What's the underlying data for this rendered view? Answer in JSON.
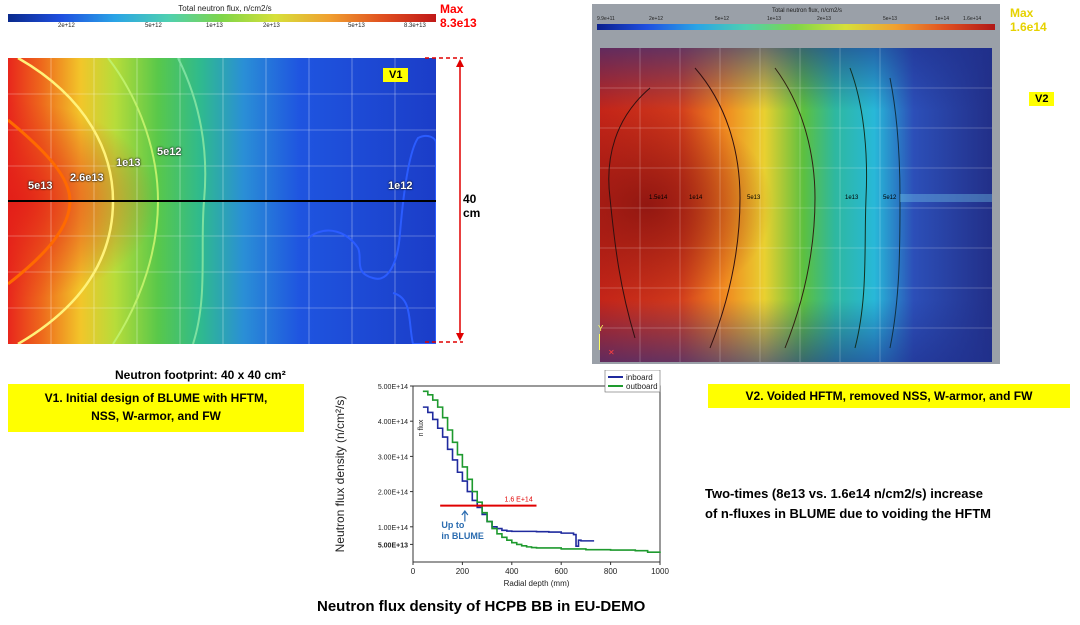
{
  "v1": {
    "colorbar_title": "Total neutron flux, n/cm2/s",
    "colorbar_ticks": [
      "2e+12",
      "5e+12",
      "1e+13",
      "2e+13",
      "5e+13",
      "8.3e+13"
    ],
    "max_label": "Max",
    "max_value": "8.3e13",
    "tag": "V1",
    "contour_labels": [
      "5e13",
      "2.6e13",
      "1e13",
      "5e12",
      "1e12"
    ],
    "height_label": "40 cm",
    "footprint": "Neutron footprint: 40 x 40 cm²",
    "caption_line1": "V1. Initial design of BLUME with HFTM,",
    "caption_line2": "NSS, W-armor, and FW",
    "colors": {
      "max": "#ff0000",
      "dash": "#e00000"
    }
  },
  "v2": {
    "colorbar_title": "Total neutron flux, n/cm2/s",
    "colorbar_ticks": [
      "9.9e+11",
      "2e+12",
      "5e+12",
      "1e+13",
      "2e+13",
      "5e+13",
      "1e+14",
      "1.6e+14"
    ],
    "max_label": "Max",
    "max_value": "1.6e14",
    "tag": "V2",
    "contour_labels": [
      "1.5e14",
      "1e14",
      "5e13",
      "1e13",
      "5e12"
    ],
    "caption": "V2. Voided HFTM, removed NSS, W-armor, and FW",
    "colors": {
      "max": "#ffff00"
    }
  },
  "summary_line1": "Two-times (8e13 vs. 1.6e14 n/cm2/s) increase",
  "summary_line2": "of n-fluxes in BLUME due to voiding the HFTM",
  "bottom_title": "Neutron flux density of HCPB BB in EU-DEMO",
  "chart_data": {
    "type": "line",
    "xlabel": "Radial depth (mm)",
    "ylabel": "Neutron flux density (n/cm²/s)",
    "inner_ylabel": "n flux",
    "xlim": [
      0,
      1000
    ],
    "ylim": [
      0,
      500000000000000.0
    ],
    "xticks": [
      "0",
      "200",
      "400",
      "600",
      "800",
      "1000"
    ],
    "yticks": [
      {
        "label": "5.00E+13",
        "value": 50000000000000.0
      },
      {
        "label": "1.00E+14",
        "value": 100000000000000.0
      },
      {
        "label": "2.00E+14",
        "value": 200000000000000.0
      },
      {
        "label": "3.00E+14",
        "value": 300000000000000.0
      },
      {
        "label": "4.00E+14",
        "value": 400000000000000.0
      },
      {
        "label": "5.00E+14",
        "value": 500000000000000.0
      }
    ],
    "legend_position": "top-right",
    "series": [
      {
        "name": "inboard",
        "color": "#1f2a9e",
        "x": [
          40,
          60,
          80,
          100,
          120,
          140,
          160,
          180,
          200,
          220,
          240,
          260,
          280,
          300,
          320,
          340,
          360,
          380,
          400,
          450,
          500,
          550,
          600,
          650,
          660,
          670,
          680,
          700,
          730
        ],
        "y": [
          440000000000000.0,
          425000000000000.0,
          405000000000000.0,
          380000000000000.0,
          355000000000000.0,
          320000000000000.0,
          290000000000000.0,
          255000000000000.0,
          230000000000000.0,
          200000000000000.0,
          175000000000000.0,
          155000000000000.0,
          135000000000000.0,
          115000000000000.0,
          100000000000000.0,
          95000000000000.0,
          90000000000000.0,
          88000000000000.0,
          87000000000000.0,
          87000000000000.0,
          86000000000000.0,
          85000000000000.0,
          82000000000000.0,
          78000000000000.0,
          45000000000000.0,
          62000000000000.0,
          60000000000000.0,
          60000000000000.0,
          58000000000000.0
        ]
      },
      {
        "name": "outboard",
        "color": "#1e9a2e",
        "x": [
          40,
          60,
          80,
          100,
          120,
          140,
          160,
          180,
          200,
          220,
          240,
          260,
          280,
          300,
          320,
          340,
          360,
          380,
          400,
          420,
          440,
          460,
          480,
          500,
          600,
          700,
          800,
          900,
          950,
          1000
        ],
        "y": [
          485000000000000.0,
          475000000000000.0,
          460000000000000.0,
          440000000000000.0,
          410000000000000.0,
          375000000000000.0,
          340000000000000.0,
          305000000000000.0,
          270000000000000.0,
          235000000000000.0,
          200000000000000.0,
          170000000000000.0,
          140000000000000.0,
          115000000000000.0,
          95000000000000.0,
          80000000000000.0,
          70000000000000.0,
          62000000000000.0,
          55000000000000.0,
          50000000000000.0,
          46000000000000.0,
          43000000000000.0,
          41000000000000.0,
          40000000000000.0,
          37000000000000.0,
          35000000000000.0,
          34000000000000.0,
          32000000000000.0,
          28000000000000.0,
          30000000000000.0
        ]
      }
    ],
    "annotations": [
      {
        "text": "1.6 E+14",
        "y": 160000000000000.0,
        "x_from": 110,
        "x_to": 500,
        "color": "#e00000"
      },
      {
        "text": "Up to\nin BLUME",
        "x": 210,
        "color": "#2b6cb0"
      }
    ]
  }
}
